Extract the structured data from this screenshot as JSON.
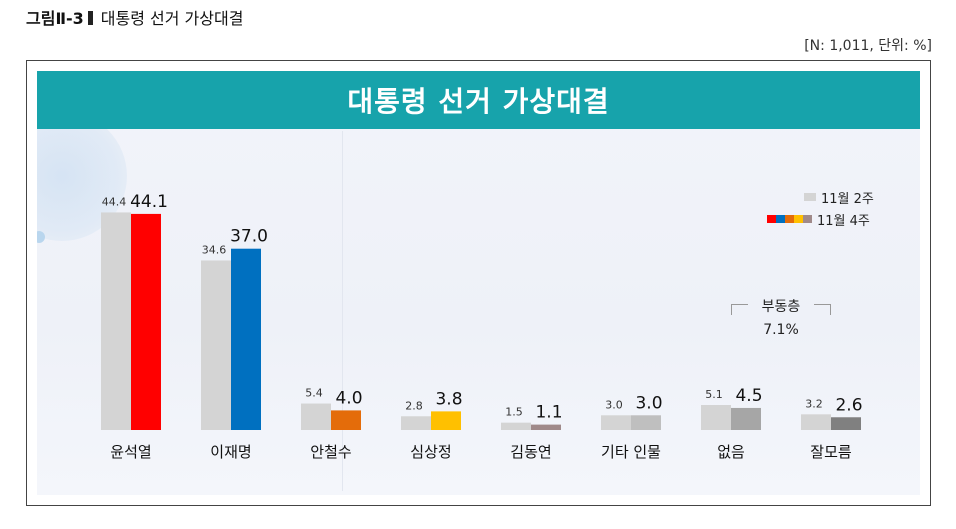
{
  "figure": {
    "label": "그림Ⅱ-3",
    "title": "대통령 선거 가상대결",
    "units": "[N: 1,011, 단위: %]"
  },
  "chart_data": {
    "type": "bar",
    "title": "대통령 선거 가상대결",
    "categories": [
      "윤석열",
      "이재명",
      "안철수",
      "심상정",
      "김동연",
      "기타 인물",
      "없음",
      "잘모름"
    ],
    "series": [
      {
        "name": "11월 2주",
        "values": [
          44.4,
          34.6,
          5.4,
          2.8,
          1.5,
          3.0,
          5.1,
          3.2
        ]
      },
      {
        "name": "11월 4주",
        "values": [
          44.1,
          37.0,
          4.0,
          3.8,
          1.1,
          3.0,
          4.5,
          2.6
        ]
      }
    ],
    "ylim": [
      0,
      50
    ],
    "grid": false,
    "legend_position": "top-right",
    "colors": {
      "series1": "#d4d4d4",
      "series2_by_category": [
        "#ff0000",
        "#0070c0",
        "#e46c0a",
        "#ffc000",
        "#a08a8a",
        "#bfbfbf",
        "#a6a6a6",
        "#808080"
      ],
      "title_band": "#17a3ab"
    },
    "annotation": {
      "label": "부동층",
      "value": "7.1%"
    }
  }
}
